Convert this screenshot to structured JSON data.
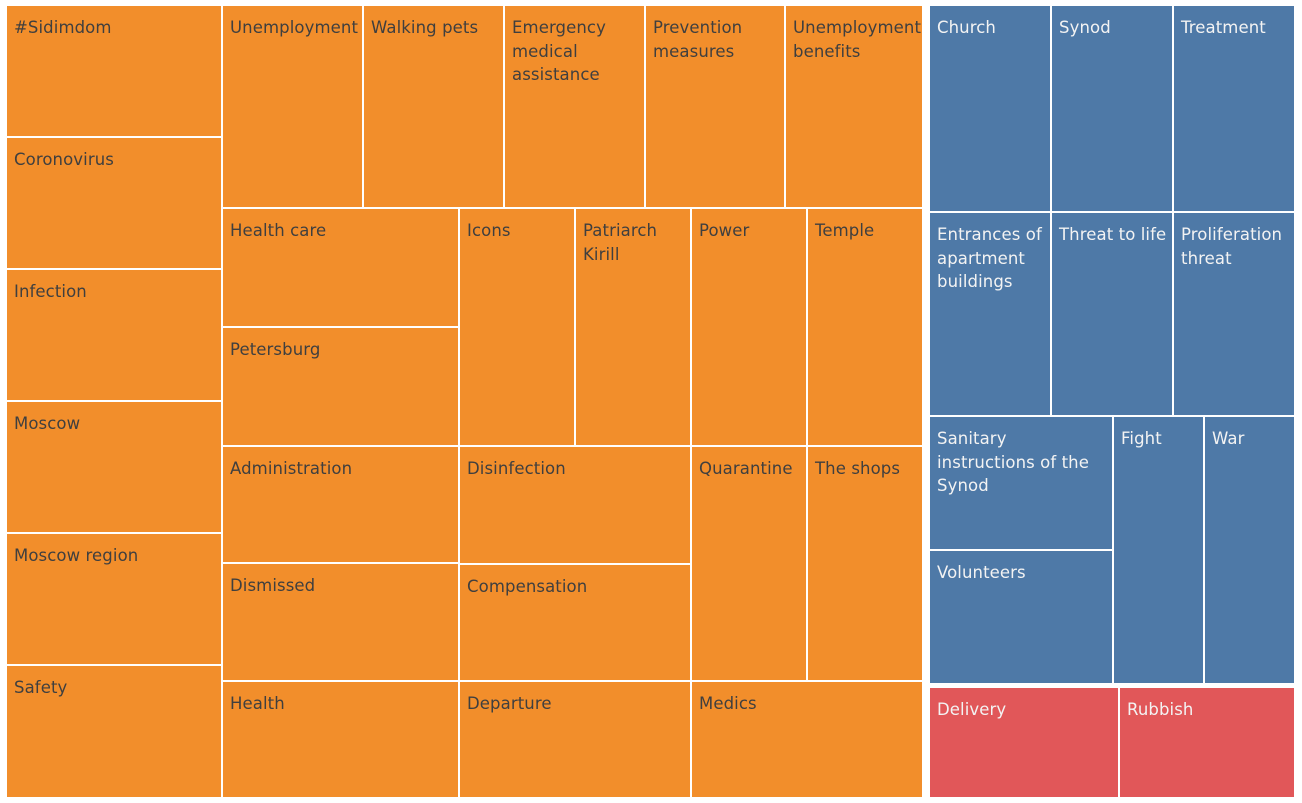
{
  "chart_data": {
    "type": "treemap",
    "title": "",
    "groups": [
      {
        "name": "orange-group",
        "color": "#f28e2b",
        "label_color": "#3f3f3f",
        "items": [
          {
            "label": "#Sidimdom"
          },
          {
            "label": "Coronovirus"
          },
          {
            "label": "Infection"
          },
          {
            "label": "Moscow"
          },
          {
            "label": "Moscow region"
          },
          {
            "label": "Safety"
          },
          {
            "label": "Unemployment"
          },
          {
            "label": "Walking pets"
          },
          {
            "label": "Emergency\nmedical\nassistance"
          },
          {
            "label": "Prevention\nmeasures"
          },
          {
            "label": "Unemployment\nbenefits"
          },
          {
            "label": "Health care"
          },
          {
            "label": "Petersburg"
          },
          {
            "label": "Icons"
          },
          {
            "label": "Patriarch\nKirill"
          },
          {
            "label": "Power"
          },
          {
            "label": "Temple"
          },
          {
            "label": "Administration"
          },
          {
            "label": "Dismissed"
          },
          {
            "label": "Health"
          },
          {
            "label": "Disinfection"
          },
          {
            "label": "Compensation"
          },
          {
            "label": "Departure"
          },
          {
            "label": "Quarantine"
          },
          {
            "label": "The shops"
          },
          {
            "label": "Medics"
          }
        ]
      },
      {
        "name": "blue-group",
        "color": "#4e79a7",
        "label_color": "#f3f3f3",
        "items": [
          {
            "label": "Church"
          },
          {
            "label": "Synod"
          },
          {
            "label": "Treatment"
          },
          {
            "label": "Entrances of\napartment\nbuildings"
          },
          {
            "label": "Threat to life"
          },
          {
            "label": "Proliferation\nthreat"
          },
          {
            "label": "Sanitary\ninstructions of the\nSynod"
          },
          {
            "label": "Volunteers"
          },
          {
            "label": "Fight"
          },
          {
            "label": "War"
          }
        ]
      },
      {
        "name": "red-group",
        "color": "#e15759",
        "label_color": "#f3f3f3",
        "items": [
          {
            "label": "Delivery"
          },
          {
            "label": "Rubbish"
          }
        ]
      }
    ]
  }
}
